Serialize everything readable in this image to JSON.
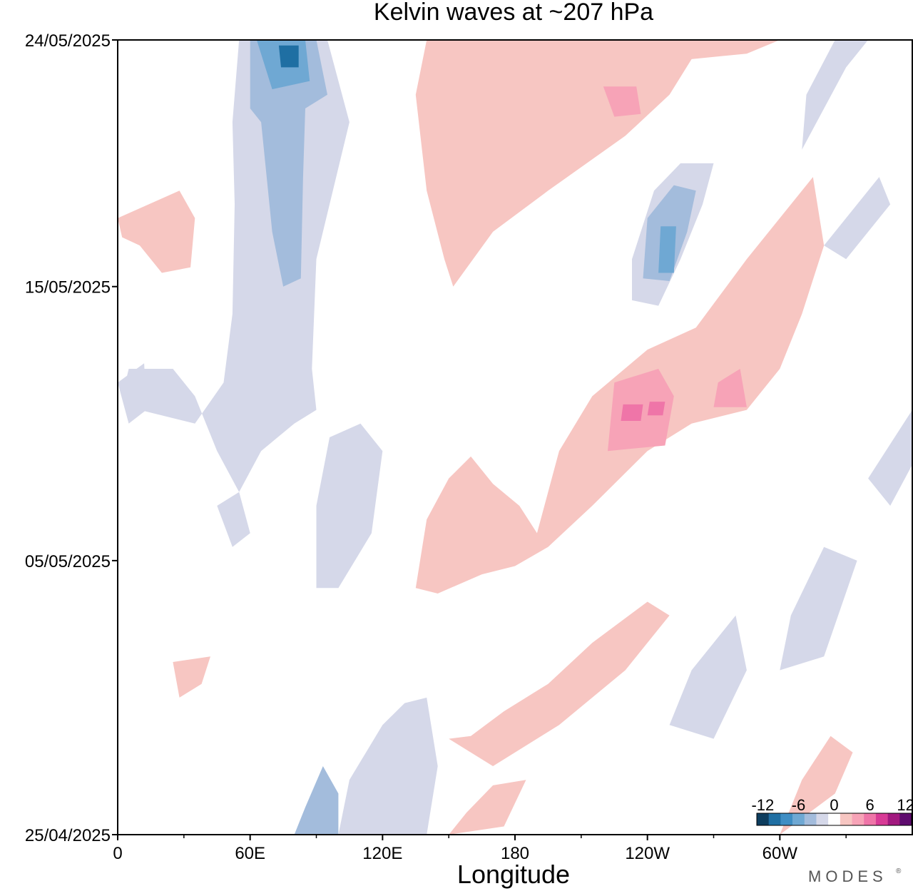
{
  "chart_data": {
    "type": "heatmap",
    "title": "Kelvin waves at ~207 hPa",
    "xlabel": "Longitude",
    "ylabel": "",
    "x_ticks": [
      {
        "lon": 0,
        "label": "0"
      },
      {
        "lon": 60,
        "label": "60E"
      },
      {
        "lon": 120,
        "label": "120E"
      },
      {
        "lon": 180,
        "label": "180"
      },
      {
        "lon": 240,
        "label": "120W"
      },
      {
        "lon": 300,
        "label": "60W"
      }
    ],
    "x_range": [
      0,
      360
    ],
    "y_ticks": [
      {
        "date": "2025-05-24",
        "label": "24/05/2025"
      },
      {
        "date": "2025-05-15",
        "label": "15/05/2025"
      },
      {
        "date": "2025-05-05",
        "label": "05/05/2025"
      },
      {
        "date": "2025-04-25",
        "label": "25/04/2025"
      }
    ],
    "y_range": [
      "2025-04-25",
      "2025-05-24"
    ],
    "colorbar": {
      "labels": [
        "-12",
        "-6",
        "0",
        "6",
        "12"
      ],
      "colors": [
        "#0d3d5e",
        "#1f6fa3",
        "#3f8ec4",
        "#6fa8d3",
        "#a3bcdc",
        "#d5d8e9",
        "#ffffff",
        "#f7c6c2",
        "#f7a3b7",
        "#ef75a8",
        "#d83b96",
        "#a2197f",
        "#5e0b6e"
      ]
    },
    "levels": [
      "#1f6fa3",
      "#6fa8d3",
      "#a3bcdc",
      "#d5d8e9",
      "#f7c6c2",
      "#f7a3b7",
      "#ef75a8"
    ],
    "features": [
      {
        "level": 3,
        "pts": [
          [
            55,
            "2025-05-24"
          ],
          [
            95,
            "2025-05-24"
          ],
          [
            105,
            "2025-05-21"
          ],
          [
            90,
            "2025-05-16"
          ],
          [
            88,
            "2025-05-12"
          ],
          [
            90,
            "2025-05-10.5"
          ],
          [
            80,
            "2025-05-10"
          ],
          [
            65,
            "2025-05-09"
          ],
          [
            55,
            "2025-05-07.5"
          ],
          [
            45,
            "2025-05-09"
          ],
          [
            35,
            "2025-05-11"
          ],
          [
            25,
            "2025-05-12"
          ],
          [
            5,
            "2025-05-12"
          ],
          [
            2,
            "2025-05-11"
          ],
          [
            10,
            "2025-05-10.5"
          ],
          [
            35,
            "2025-05-10"
          ],
          [
            48,
            "2025-05-11.5"
          ],
          [
            52,
            "2025-05-14"
          ],
          [
            53,
            "2025-05-18"
          ],
          [
            52,
            "2025-05-21"
          ]
        ]
      },
      {
        "level": 2,
        "pts": [
          [
            60,
            "2025-05-24"
          ],
          [
            90,
            "2025-05-24"
          ],
          [
            95,
            "2025-05-22"
          ],
          [
            85,
            "2025-05-21.5"
          ],
          [
            84,
            "2025-05-19"
          ],
          [
            83,
            "2025-05-15.3"
          ],
          [
            75,
            "2025-05-15"
          ],
          [
            70,
            "2025-05-17"
          ],
          [
            65,
            "2025-05-21"
          ],
          [
            60,
            "2025-05-21.5"
          ]
        ]
      },
      {
        "level": 1,
        "pts": [
          [
            63,
            "2025-05-24"
          ],
          [
            85,
            "2025-05-24"
          ],
          [
            87,
            "2025-05-22.5"
          ],
          [
            70,
            "2025-05-22.2"
          ]
        ]
      },
      {
        "level": 0,
        "pts": [
          [
            73,
            "2025-05-23.8"
          ],
          [
            82,
            "2025-05-23.8"
          ],
          [
            82,
            "2025-05-23"
          ],
          [
            74,
            "2025-05-23"
          ]
        ]
      },
      {
        "level": 4,
        "pts": [
          [
            140,
            "2025-05-24"
          ],
          [
            300,
            "2025-05-24"
          ],
          [
            285,
            "2025-05-23.5"
          ],
          [
            260,
            "2025-05-23.3"
          ],
          [
            250,
            "2025-05-22"
          ],
          [
            230,
            "2025-05-20.5"
          ],
          [
            195,
            "2025-05-18.5"
          ],
          [
            170,
            "2025-05-17"
          ],
          [
            152,
            "2025-05-15"
          ],
          [
            148,
            "2025-05-16"
          ],
          [
            140,
            "2025-05-18.5"
          ],
          [
            135,
            "2025-05-22"
          ]
        ]
      },
      {
        "level": 5,
        "pts": [
          [
            220,
            "2025-05-22.3"
          ],
          [
            235,
            "2025-05-22.3"
          ],
          [
            237,
            "2025-05-21.3"
          ],
          [
            225,
            "2025-05-21.2"
          ]
        ]
      },
      {
        "level": 4,
        "pts": [
          [
            190,
            "2025-05-06"
          ],
          [
            200,
            "2025-05-09"
          ],
          [
            215,
            "2025-05-11"
          ],
          [
            240,
            "2025-05-12.7"
          ],
          [
            262,
            "2025-05-13.5"
          ],
          [
            285,
            "2025-05-16"
          ],
          [
            315,
            "2025-05-19"
          ],
          [
            320,
            "2025-05-16.5"
          ],
          [
            310,
            "2025-05-14"
          ],
          [
            300,
            "2025-05-12"
          ],
          [
            285,
            "2025-05-10.5"
          ],
          [
            260,
            "2025-05-10"
          ],
          [
            240,
            "2025-05-09"
          ],
          [
            215,
            "2025-05-07"
          ],
          [
            195,
            "2025-05-05.5"
          ],
          [
            180,
            "2025-05-04.8"
          ],
          [
            165,
            "2025-05-04.5"
          ],
          [
            145,
            "2025-05-03.8"
          ],
          [
            135,
            "2025-05-04"
          ],
          [
            140,
            "2025-05-06.5"
          ],
          [
            150,
            "2025-05-08"
          ],
          [
            160,
            "2025-05-08.8"
          ],
          [
            170,
            "2025-05-07.8"
          ],
          [
            182,
            "2025-05-07"
          ]
        ]
      },
      {
        "level": 5,
        "pts": [
          [
            222,
            "2025-05-09"
          ],
          [
            248,
            "2025-05-09.2"
          ],
          [
            252,
            "2025-05-11"
          ],
          [
            245,
            "2025-05-12"
          ],
          [
            225,
            "2025-05-11.5"
          ]
        ]
      },
      {
        "level": 5,
        "pts": [
          [
            270,
            "2025-05-10.6"
          ],
          [
            285,
            "2025-05-10.6"
          ],
          [
            282,
            "2025-05-12"
          ],
          [
            272,
            "2025-05-11.5"
          ]
        ]
      },
      {
        "level": 6,
        "pts": [
          [
            228,
            "2025-05-10.1"
          ],
          [
            237,
            "2025-05-10.1"
          ],
          [
            238,
            "2025-05-10.7"
          ],
          [
            229,
            "2025-05-10.7"
          ]
        ]
      },
      {
        "level": 6,
        "pts": [
          [
            240,
            "2025-05-10.3"
          ],
          [
            247,
            "2025-05-10.3"
          ],
          [
            248,
            "2025-05-10.8"
          ],
          [
            241,
            "2025-05-10.8"
          ]
        ]
      },
      {
        "level": 3,
        "pts": [
          [
            233,
            "2025-05-14.5"
          ],
          [
            245,
            "2025-05-14.3"
          ],
          [
            255,
            "2025-05-16"
          ],
          [
            265,
            "2025-05-18"
          ],
          [
            270,
            "2025-05-19.5"
          ],
          [
            255,
            "2025-05-19.5"
          ],
          [
            243,
            "2025-05-18.5"
          ],
          [
            233,
            "2025-05-16"
          ]
        ]
      },
      {
        "level": 2,
        "pts": [
          [
            238,
            "2025-05-15.3"
          ],
          [
            250,
            "2025-05-15.2"
          ],
          [
            258,
            "2025-05-17"
          ],
          [
            262,
            "2025-05-18.5"
          ],
          [
            252,
            "2025-05-18.7"
          ],
          [
            240,
            "2025-05-17.5"
          ]
        ]
      },
      {
        "level": 1,
        "pts": [
          [
            245,
            "2025-05-15.5"
          ],
          [
            252,
            "2025-05-15.5"
          ],
          [
            253,
            "2025-05-17.2"
          ],
          [
            246,
            "2025-05-17.2"
          ]
        ]
      },
      {
        "level": 4,
        "pts": [
          [
            0,
            "2025-05-17.5"
          ],
          [
            28,
            "2025-05-18.5"
          ],
          [
            35,
            "2025-05-17.5"
          ],
          [
            33,
            "2025-05-15.7"
          ],
          [
            20,
            "2025-05-15.5"
          ],
          [
            10,
            "2025-05-16.5"
          ],
          [
            2,
            "2025-05-16.8"
          ]
        ]
      },
      {
        "level": 3,
        "pts": [
          [
            100,
            "2025-04-25"
          ],
          [
            140,
            "2025-04-25"
          ],
          [
            145,
            "2025-04-27.5"
          ],
          [
            140,
            "2025-04-30"
          ],
          [
            130,
            "2025-04-29.8"
          ],
          [
            120,
            "2025-04-29"
          ],
          [
            105,
            "2025-04-27"
          ]
        ]
      },
      {
        "level": 2,
        "pts": [
          [
            80,
            "2025-04-25"
          ],
          [
            100,
            "2025-04-25"
          ],
          [
            100,
            "2025-04-26.5"
          ],
          [
            93,
            "2025-04-27.5"
          ],
          [
            85,
            "2025-04-26"
          ]
        ]
      },
      {
        "level": 3,
        "pts": [
          [
            90,
            "2025-05-04"
          ],
          [
            100,
            "2025-05-04"
          ],
          [
            115,
            "2025-05-06"
          ],
          [
            120,
            "2025-05-09"
          ],
          [
            110,
            "2025-05-10"
          ],
          [
            96,
            "2025-05-09.5"
          ],
          [
            90,
            "2025-05-07"
          ]
        ]
      },
      {
        "level": 4,
        "pts": [
          [
            150,
            "2025-04-28.5"
          ],
          [
            170,
            "2025-04-27.5"
          ],
          [
            200,
            "2025-04-29"
          ],
          [
            230,
            "2025-05-01"
          ],
          [
            250,
            "2025-05-03"
          ],
          [
            240,
            "2025-05-03.5"
          ],
          [
            215,
            "2025-05-02"
          ],
          [
            195,
            "2025-04-30.5"
          ],
          [
            175,
            "2025-04-29.5"
          ],
          [
            160,
            "2025-04-28.6"
          ]
        ]
      },
      {
        "level": 4,
        "pts": [
          [
            150,
            "2025-04-25"
          ],
          [
            175,
            "2025-04-25.3"
          ],
          [
            185,
            "2025-04-27"
          ],
          [
            170,
            "2025-04-26.8"
          ],
          [
            158,
            "2025-04-25.8"
          ]
        ]
      },
      {
        "level": 3,
        "pts": [
          [
            250,
            "2025-04-29"
          ],
          [
            270,
            "2025-04-28.5"
          ],
          [
            285,
            "2025-04-31"
          ],
          [
            280,
            "2025-05-03"
          ],
          [
            270,
            "2025-05-02"
          ],
          [
            260,
            "2025-04-31"
          ]
        ]
      },
      {
        "level": 3,
        "pts": [
          [
            300,
            "2025-04-31"
          ],
          [
            320,
            "2025-04-31.5"
          ],
          [
            335,
            "2025-05-05"
          ],
          [
            320,
            "2025-05-05.5"
          ],
          [
            305,
            "2025-05-03"
          ]
        ]
      },
      {
        "level": 3,
        "pts": [
          [
            310,
            "2025-05-20"
          ],
          [
            330,
            "2025-05-23"
          ],
          [
            340,
            "2025-05-24"
          ],
          [
            325,
            "2025-05-24"
          ],
          [
            312,
            "2025-05-22"
          ]
        ]
      },
      {
        "level": 3,
        "pts": [
          [
            320,
            "2025-05-16.5"
          ],
          [
            345,
            "2025-05-19"
          ],
          [
            350,
            "2025-05-18"
          ],
          [
            330,
            "2025-05-16"
          ]
        ]
      },
      {
        "level": 3,
        "pts": [
          [
            340,
            "2025-05-08"
          ],
          [
            360,
            "2025-05-10.5"
          ],
          [
            360,
            "2025-05-08.5"
          ],
          [
            350,
            "2025-05-07"
          ]
        ]
      },
      {
        "level": 3,
        "pts": [
          [
            0,
            "2025-05-11.5"
          ],
          [
            12,
            "2025-05-12.2"
          ],
          [
            13,
            "2025-05-10.5"
          ],
          [
            5,
            "2025-05-10"
          ]
        ]
      },
      {
        "level": 3,
        "pts": [
          [
            45,
            "2025-05-07"
          ],
          [
            55,
            "2025-05-07.5"
          ],
          [
            60,
            "2025-05-06"
          ],
          [
            52,
            "2025-05-05.5"
          ]
        ]
      },
      {
        "level": 4,
        "pts": [
          [
            300,
            "2025-04-25"
          ],
          [
            325,
            "2025-04-26.5"
          ],
          [
            333,
            "2025-04-28"
          ],
          [
            323,
            "2025-04-28.6"
          ],
          [
            310,
            "2025-04-27"
          ]
        ]
      },
      {
        "level": 4,
        "pts": [
          [
            25,
            "2025-04-31.3"
          ],
          [
            42,
            "2025-04-31.5"
          ],
          [
            38,
            "2025-04-30.5"
          ],
          [
            28,
            "2025-04-30"
          ]
        ]
      }
    ]
  },
  "brand": "MODES",
  "brand_mark": "®"
}
